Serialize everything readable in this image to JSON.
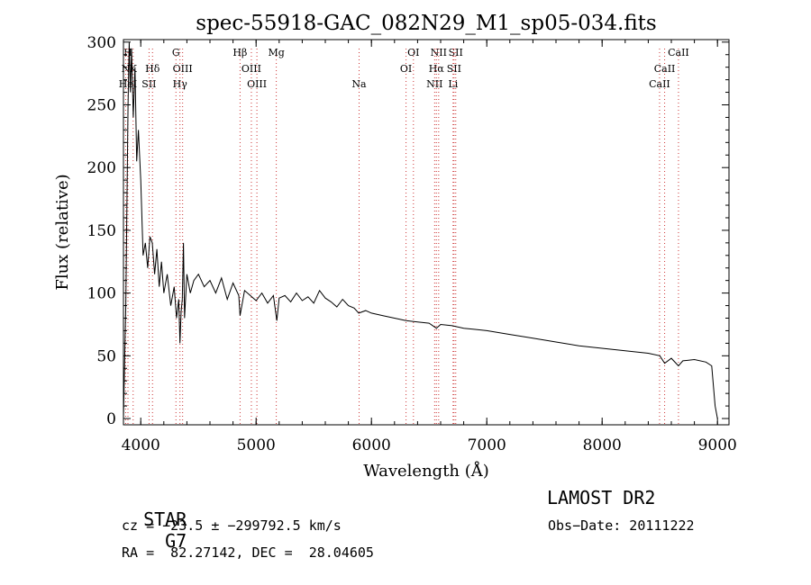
{
  "chart_data": {
    "type": "line",
    "title": "spec-55918-GAC_082N29_M1_sp05-034.fits",
    "xlabel": "Wavelength (Å)",
    "ylabel": "Flux (relative)",
    "xlim": [
      3850,
      9100
    ],
    "ylim": [
      -5,
      302
    ],
    "xticks": [
      4000,
      5000,
      6000,
      7000,
      8000,
      9000
    ],
    "yticks": [
      0,
      50,
      100,
      150,
      200,
      250,
      300
    ],
    "grid": false,
    "series": [
      {
        "x": [
          3850,
          3870,
          3890,
          3900,
          3910,
          3920,
          3935,
          3950,
          3965,
          3980,
          4000,
          4020,
          4040,
          4060,
          4080,
          4100,
          4120,
          4140,
          4160,
          4180,
          4200,
          4230,
          4260,
          4290,
          4310,
          4330,
          4340,
          4350,
          4360,
          4370,
          4380,
          4400,
          4430,
          4460,
          4500,
          4550,
          4600,
          4650,
          4700,
          4750,
          4800,
          4850,
          4861,
          4900,
          4950,
          5000,
          5050,
          5100,
          5150,
          5180,
          5200,
          5250,
          5300,
          5350,
          5400,
          5450,
          5500,
          5550,
          5600,
          5650,
          5700,
          5750,
          5800,
          5850,
          5890,
          5950,
          6000,
          6100,
          6200,
          6300,
          6400,
          6500,
          6563,
          6600,
          6700,
          6800,
          6900,
          7000,
          7200,
          7400,
          7600,
          7800,
          8000,
          8200,
          8400,
          8500,
          8542,
          8600,
          8662,
          8700,
          8800,
          8900,
          8950,
          8980,
          9000
        ],
        "values": [
          0,
          90,
          250,
          300,
          260,
          295,
          240,
          280,
          205,
          230,
          190,
          130,
          140,
          120,
          145,
          140,
          115,
          135,
          105,
          125,
          100,
          115,
          90,
          105,
          80,
          95,
          60,
          85,
          95,
          140,
          80,
          115,
          100,
          110,
          115,
          105,
          110,
          100,
          112,
          95,
          108,
          98,
          82,
          102,
          98,
          94,
          100,
          92,
          98,
          78,
          96,
          98,
          93,
          100,
          94,
          97,
          92,
          102,
          96,
          93,
          89,
          95,
          90,
          88,
          84,
          86,
          84,
          82,
          80,
          78,
          77,
          76,
          72,
          75,
          74,
          72,
          71,
          70,
          67,
          64,
          61,
          58,
          56,
          54,
          52,
          50,
          44,
          48,
          42,
          46,
          47,
          45,
          42,
          10,
          0
        ]
      }
    ],
    "lines": [
      {
        "x": 3889,
        "label": "H",
        "row": 0
      },
      {
        "x": 3869,
        "label": "N",
        "row": 1
      },
      {
        "x": 3934,
        "label": "K",
        "row": 1
      },
      {
        "x": 3889,
        "label": "HeI",
        "row": 2
      },
      {
        "x": 4102,
        "label": "Hδ",
        "row": 1
      },
      {
        "x": 4072,
        "label": "SII",
        "row": 2
      },
      {
        "x": 4305,
        "label": "G",
        "row": 0
      },
      {
        "x": 4363,
        "label": "OIII",
        "row": 1
      },
      {
        "x": 4340,
        "label": "Hγ",
        "row": 2
      },
      {
        "x": 4861,
        "label": "Hβ",
        "row": 0
      },
      {
        "x": 4959,
        "label": "OIII",
        "row": 1
      },
      {
        "x": 5007,
        "label": "OIII",
        "row": 2
      },
      {
        "x": 5175,
        "label": "Mg",
        "row": 0
      },
      {
        "x": 5893,
        "label": "Na",
        "row": 2
      },
      {
        "x": 6364,
        "label": "OI",
        "row": 0
      },
      {
        "x": 6300,
        "label": "OI",
        "row": 1
      },
      {
        "x": 6583,
        "label": "NII",
        "row": 0
      },
      {
        "x": 6563,
        "label": "Hα",
        "row": 1
      },
      {
        "x": 6548,
        "label": "NII",
        "row": 2
      },
      {
        "x": 6731,
        "label": "SII",
        "row": 0
      },
      {
        "x": 6716,
        "label": "SII",
        "row": 1
      },
      {
        "x": 6708,
        "label": "Li",
        "row": 2
      },
      {
        "x": 8662,
        "label": "CaII",
        "row": 0
      },
      {
        "x": 8542,
        "label": "CaII",
        "row": 1
      },
      {
        "x": 8498,
        "label": "CaII",
        "row": 2
      }
    ]
  },
  "info": {
    "class": "STAR",
    "subclass": "G7",
    "survey": "LAMOST DR2",
    "cz": "cz = −23.5 ± −299792.5 km/s",
    "obs_date": "Obs−Date: 20111222",
    "radec": "RA =  82.27142, DEC =  28.04605"
  }
}
